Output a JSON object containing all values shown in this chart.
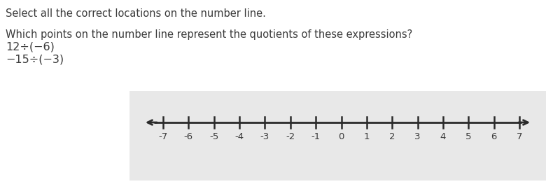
{
  "title_line1": "Select all the correct locations on the number line.",
  "title_line2": "Which points on the number line represent the quotients of these expressions?",
  "expr1": "12÷(−6)",
  "expr2": "−15÷(−3)",
  "tick_positions": [
    -7,
    -6,
    -5,
    -4,
    -3,
    -2,
    -1,
    0,
    1,
    2,
    3,
    4,
    5,
    6,
    7
  ],
  "tick_labels": [
    "-7",
    "-6",
    "-5",
    "-4",
    "-3",
    "-2",
    "-1",
    "0",
    "1",
    "2",
    "3",
    "4",
    "5",
    "6",
    "7"
  ],
  "background_color": "#e8e8e8",
  "page_background": "#ffffff",
  "text_color": "#3a3a3a",
  "line_color": "#2a2a2a",
  "font_size_text": 10.5,
  "font_size_expr": 11.5,
  "font_size_tick": 9.5
}
